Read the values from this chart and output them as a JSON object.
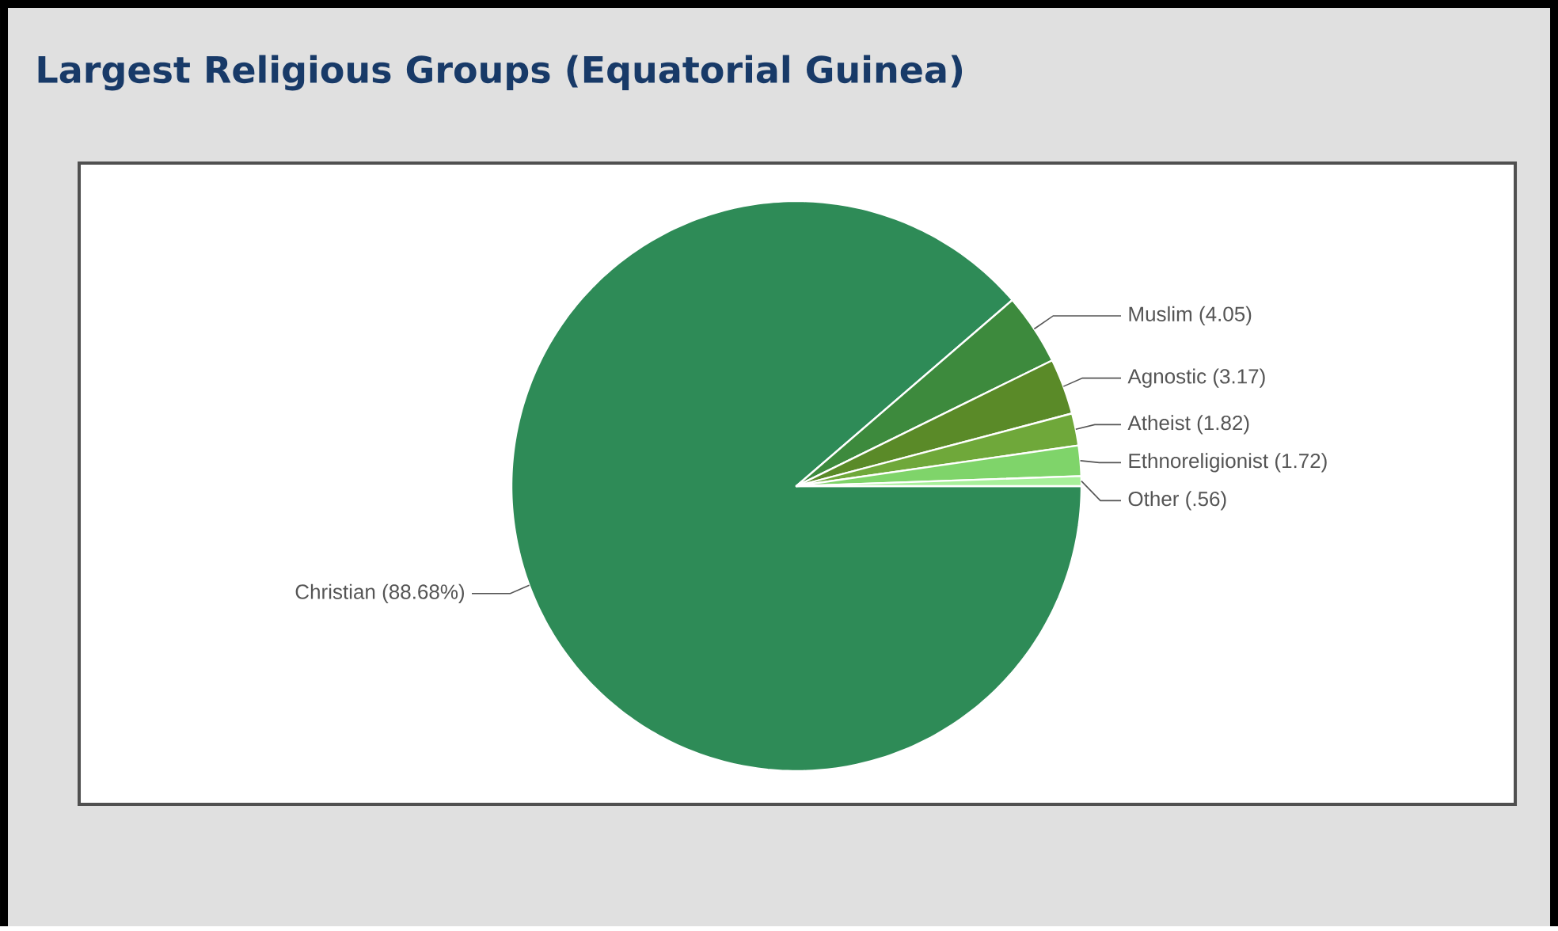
{
  "chart_data": {
    "type": "pie",
    "title": "Largest Religious Groups (Equatorial Guinea)",
    "categories": [
      "Christian",
      "Muslim",
      "Agnostic",
      "Atheist",
      "Ethnoreligionist",
      "Other"
    ],
    "values": [
      88.68,
      4.05,
      3.17,
      1.82,
      1.72,
      0.56
    ],
    "value_labels": [
      "(88.68%)",
      "(4.05)",
      "(3.17)",
      "(1.82)",
      "(1.72)",
      "(.56)"
    ],
    "colors": [
      "#2e8b57",
      "#3d8a3d",
      "#5a8a28",
      "#6fa83a",
      "#7fd46a",
      "#a8f09a"
    ]
  }
}
